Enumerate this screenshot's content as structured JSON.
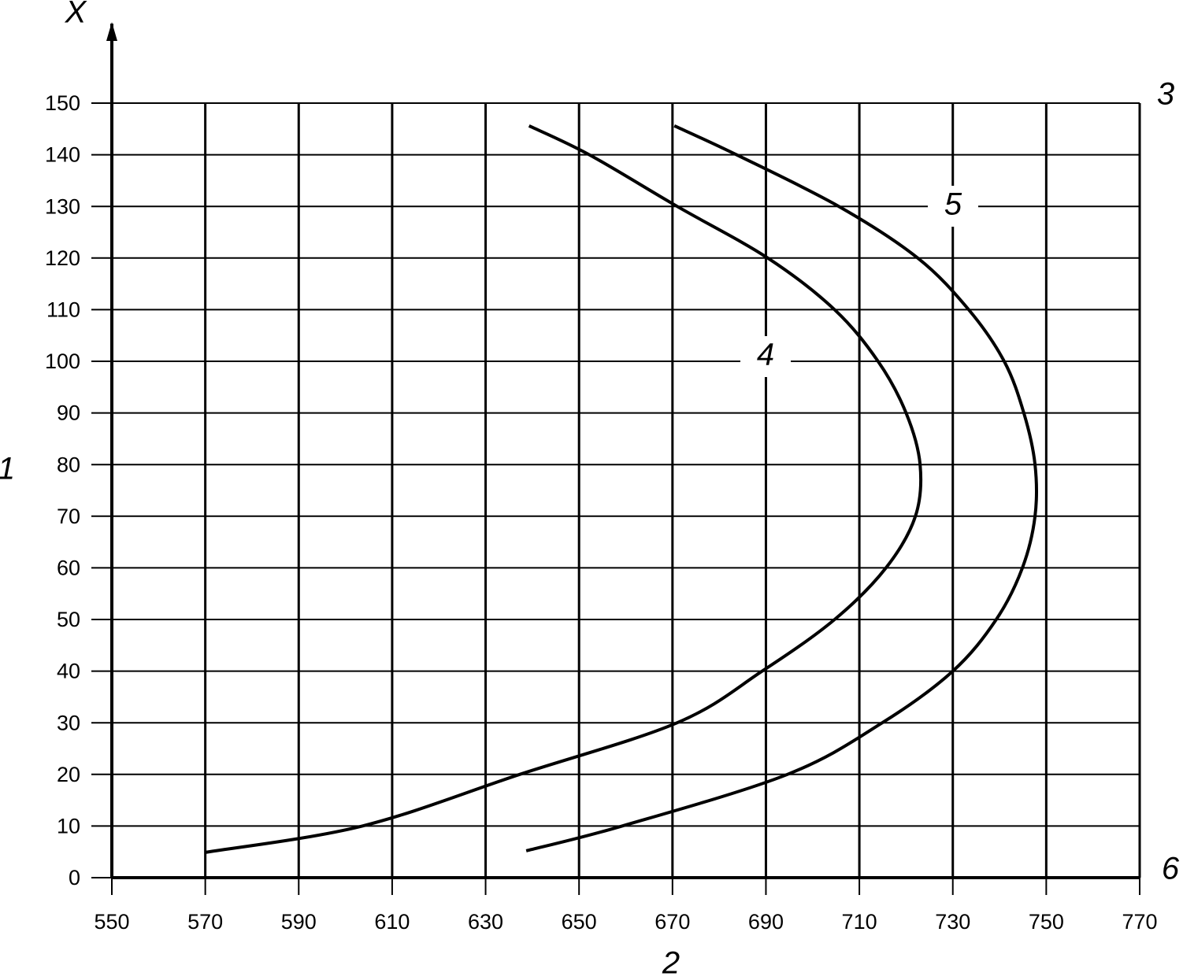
{
  "chart_data": {
    "type": "line",
    "ylabel": "X",
    "xlabel": "2",
    "annotations": [
      "1",
      "3",
      "6"
    ],
    "xlim": [
      550,
      770
    ],
    "xticks": [
      550,
      570,
      590,
      610,
      630,
      650,
      670,
      690,
      710,
      730,
      750,
      770
    ],
    "ylim": [
      0,
      150
    ],
    "yticks": [
      0,
      10,
      20,
      30,
      40,
      50,
      60,
      70,
      80,
      90,
      100,
      110,
      120,
      130,
      140,
      150
    ],
    "grid": true,
    "series": [
      {
        "name": "4",
        "color": "#000000",
        "x": [
          639.3,
          652.2,
          671,
          690.4,
          704.7,
          714,
          720,
          723,
          722,
          715.7,
          704.7,
          689.2,
          671,
          637.3,
          603.6,
          570
        ],
        "values": [
          145.6,
          140,
          130,
          120,
          110,
          100,
          90,
          80,
          70,
          60,
          50,
          40,
          30,
          20,
          10,
          4.9
        ]
      },
      {
        "name": "5",
        "color": "#000000",
        "x": [
          670.4,
          683.7,
          705.6,
          722.5,
          733.4,
          741,
          745.2,
          747.6,
          747.6,
          744.9,
          739.3,
          730,
          714.9,
          694.6,
          659.2,
          638.7
        ],
        "values": [
          145.6,
          140,
          130,
          120,
          110,
          100,
          90,
          80,
          70,
          60,
          50,
          40,
          30,
          20,
          10,
          5.2
        ]
      }
    ]
  }
}
